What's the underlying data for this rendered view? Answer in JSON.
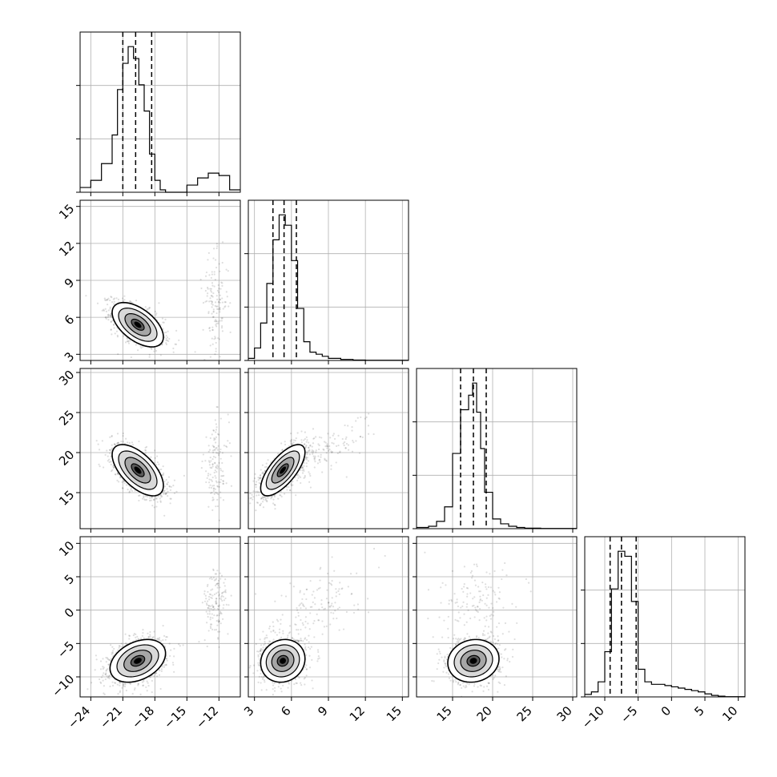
{
  "chart_data": {
    "type": "scatter",
    "subtype": "corner-plot",
    "n_params": 4,
    "grid": true,
    "quantile_lines": "dashed",
    "params": [
      {
        "label": "",
        "range": [
          -25,
          -10
        ],
        "ticks": [
          -24,
          -21,
          -18,
          -15,
          -12
        ],
        "quantiles": [
          -21.0,
          -19.8,
          -18.3
        ]
      },
      {
        "label": "",
        "range": [
          2.5,
          15.5
        ],
        "ticks": [
          3,
          6,
          9,
          12,
          15
        ],
        "quantiles": [
          4.5,
          5.4,
          6.4
        ]
      },
      {
        "label": "",
        "range": [
          10.5,
          30.5
        ],
        "ticks": [
          15,
          20,
          25,
          30
        ],
        "quantiles": [
          16.0,
          17.6,
          19.2
        ]
      },
      {
        "label": "",
        "range": [
          -13,
          11
        ],
        "ticks": [
          -10,
          -5,
          0,
          5,
          10
        ],
        "quantiles": [
          -9.2,
          -7.5,
          -5.3
        ]
      }
    ],
    "histograms": [
      {
        "param": 0,
        "bin_edges": [
          -25,
          -24,
          -23,
          -22,
          -21.5,
          -21,
          -20.5,
          -20,
          -19.5,
          -19,
          -18.5,
          -18,
          -17.5,
          -17,
          -16,
          -15,
          -14,
          -13,
          -12,
          -11,
          -10
        ],
        "counts": [
          0.2,
          0.5,
          1.2,
          2.4,
          4.3,
          5.4,
          6.1,
          5.6,
          4.5,
          3.4,
          1.6,
          0.5,
          0.1,
          0,
          0,
          0.3,
          0.6,
          0.8,
          0.7,
          0.1
        ]
      },
      {
        "param": 1,
        "bin_edges": [
          2.5,
          3,
          3.5,
          4,
          4.5,
          5,
          5.5,
          6,
          6.5,
          7,
          7.5,
          8,
          8.5,
          9,
          10,
          11,
          12,
          15.5
        ],
        "counts": [
          0.1,
          0.6,
          1.8,
          3.7,
          5.8,
          7.0,
          6.5,
          4.8,
          2.5,
          0.9,
          0.4,
          0.3,
          0.2,
          0.1,
          0.05,
          0.02,
          0.01
        ]
      },
      {
        "param": 2,
        "bin_edges": [
          10.5,
          12,
          13,
          14,
          15,
          16,
          17,
          17.5,
          18,
          18.5,
          19,
          20,
          21,
          22,
          23,
          24,
          26,
          30.5
        ],
        "counts": [
          0.05,
          0.1,
          0.3,
          0.9,
          3.1,
          4.9,
          5.5,
          6.0,
          4.8,
          3.3,
          1.5,
          0.4,
          0.2,
          0.1,
          0.05,
          0.02,
          0.01
        ]
      },
      {
        "param": 3,
        "bin_edges": [
          -13,
          -12,
          -11,
          -10,
          -9,
          -8,
          -7,
          -6,
          -5,
          -4,
          -3,
          -2,
          -1,
          0,
          1,
          2,
          3,
          4,
          5,
          6,
          7,
          8,
          11
        ],
        "counts": [
          0.1,
          0.2,
          0.6,
          1.8,
          4.3,
          5.8,
          5.6,
          3.8,
          1.1,
          0.6,
          0.5,
          0.5,
          0.45,
          0.4,
          0.35,
          0.3,
          0.25,
          0.2,
          0.12,
          0.06,
          0.03,
          0.01
        ]
      }
    ],
    "pairs": [
      {
        "x": 0,
        "y": 1,
        "clusters": [
          {
            "cx": -19.6,
            "cy": 5.4,
            "sx": 1.2,
            "sy": 0.9,
            "rho": -0.55,
            "weight": 0.9
          },
          {
            "cx": -12.3,
            "cy": 7.2,
            "sx": 0.6,
            "sy": 1.9,
            "rho": 0.0,
            "weight": 0.1
          }
        ]
      },
      {
        "x": 0,
        "y": 2,
        "clusters": [
          {
            "cx": -19.6,
            "cy": 17.8,
            "sx": 1.2,
            "sy": 1.6,
            "rho": -0.6,
            "weight": 0.9
          },
          {
            "cx": -12.3,
            "cy": 18.0,
            "sx": 0.6,
            "sy": 3.0,
            "rho": 0.0,
            "weight": 0.1
          }
        ]
      },
      {
        "x": 0,
        "y": 3,
        "clusters": [
          {
            "cx": -19.6,
            "cy": -7.6,
            "sx": 1.3,
            "sy": 1.6,
            "rho": 0.35,
            "weight": 0.9
          },
          {
            "cx": -12.3,
            "cy": 0.8,
            "sx": 0.6,
            "sy": 2.8,
            "rho": 0.0,
            "weight": 0.1
          }
        ]
      },
      {
        "x": 1,
        "y": 2,
        "clusters": [
          {
            "cx": 5.3,
            "cy": 17.8,
            "sx": 0.9,
            "sy": 1.6,
            "rho": 0.7,
            "weight": 0.9
          },
          {
            "cx": 8.5,
            "cy": 20.0,
            "sx": 2.0,
            "sy": 2.0,
            "rho": 0.75,
            "weight": 0.1
          }
        ]
      },
      {
        "x": 1,
        "y": 3,
        "clusters": [
          {
            "cx": 5.3,
            "cy": -7.6,
            "sx": 0.9,
            "sy": 1.6,
            "rho": 0.1,
            "weight": 0.9
          },
          {
            "cx": 8.0,
            "cy": 1.0,
            "sx": 1.8,
            "sy": 3.0,
            "rho": 0.45,
            "weight": 0.1
          }
        ]
      },
      {
        "x": 2,
        "y": 3,
        "clusters": [
          {
            "cx": 17.6,
            "cy": -7.6,
            "sx": 1.6,
            "sy": 1.6,
            "rho": 0.1,
            "weight": 0.9
          },
          {
            "cx": 18.0,
            "cy": 1.0,
            "sx": 3.0,
            "sy": 3.0,
            "rho": 0.25,
            "weight": 0.1
          }
        ]
      }
    ]
  }
}
